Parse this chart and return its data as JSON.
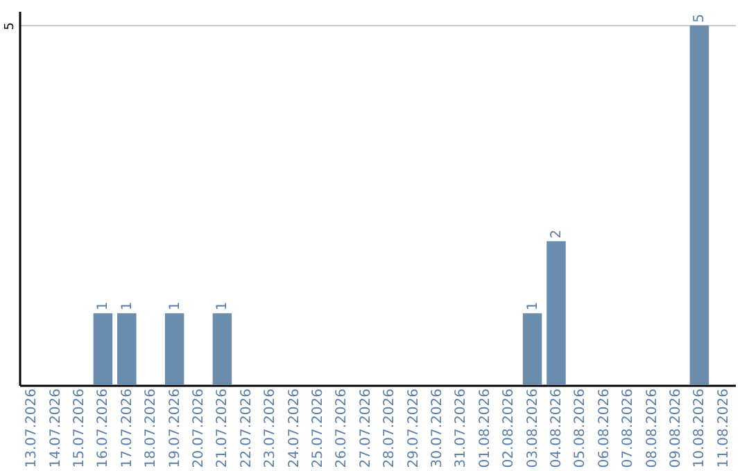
{
  "chart_data": {
    "type": "bar",
    "categories": [
      "13.07.2026",
      "14.07.2026",
      "15.07.2026",
      "16.07.2026",
      "17.07.2026",
      "18.07.2026",
      "19.07.2026",
      "20.07.2026",
      "21.07.2026",
      "22.07.2026",
      "23.07.2026",
      "24.07.2026",
      "25.07.2026",
      "26.07.2026",
      "27.07.2026",
      "28.07.2026",
      "29.07.2026",
      "30.07.2026",
      "31.07.2026",
      "01.08.2026",
      "02.08.2026",
      "03.08.2026",
      "04.08.2026",
      "05.08.2026",
      "06.08.2026",
      "07.08.2026",
      "08.08.2026",
      "09.08.2026",
      "10.08.2026",
      "11.08.2026"
    ],
    "values": [
      null,
      null,
      null,
      1,
      1,
      null,
      1,
      null,
      1,
      null,
      null,
      null,
      null,
      null,
      null,
      null,
      null,
      null,
      null,
      null,
      null,
      1,
      2,
      null,
      null,
      null,
      null,
      null,
      5,
      null
    ],
    "color": "#6a8cad",
    "ylim": [
      0,
      5.2
    ],
    "yticks": [
      5
    ],
    "grid": "y",
    "data_labels": true
  }
}
